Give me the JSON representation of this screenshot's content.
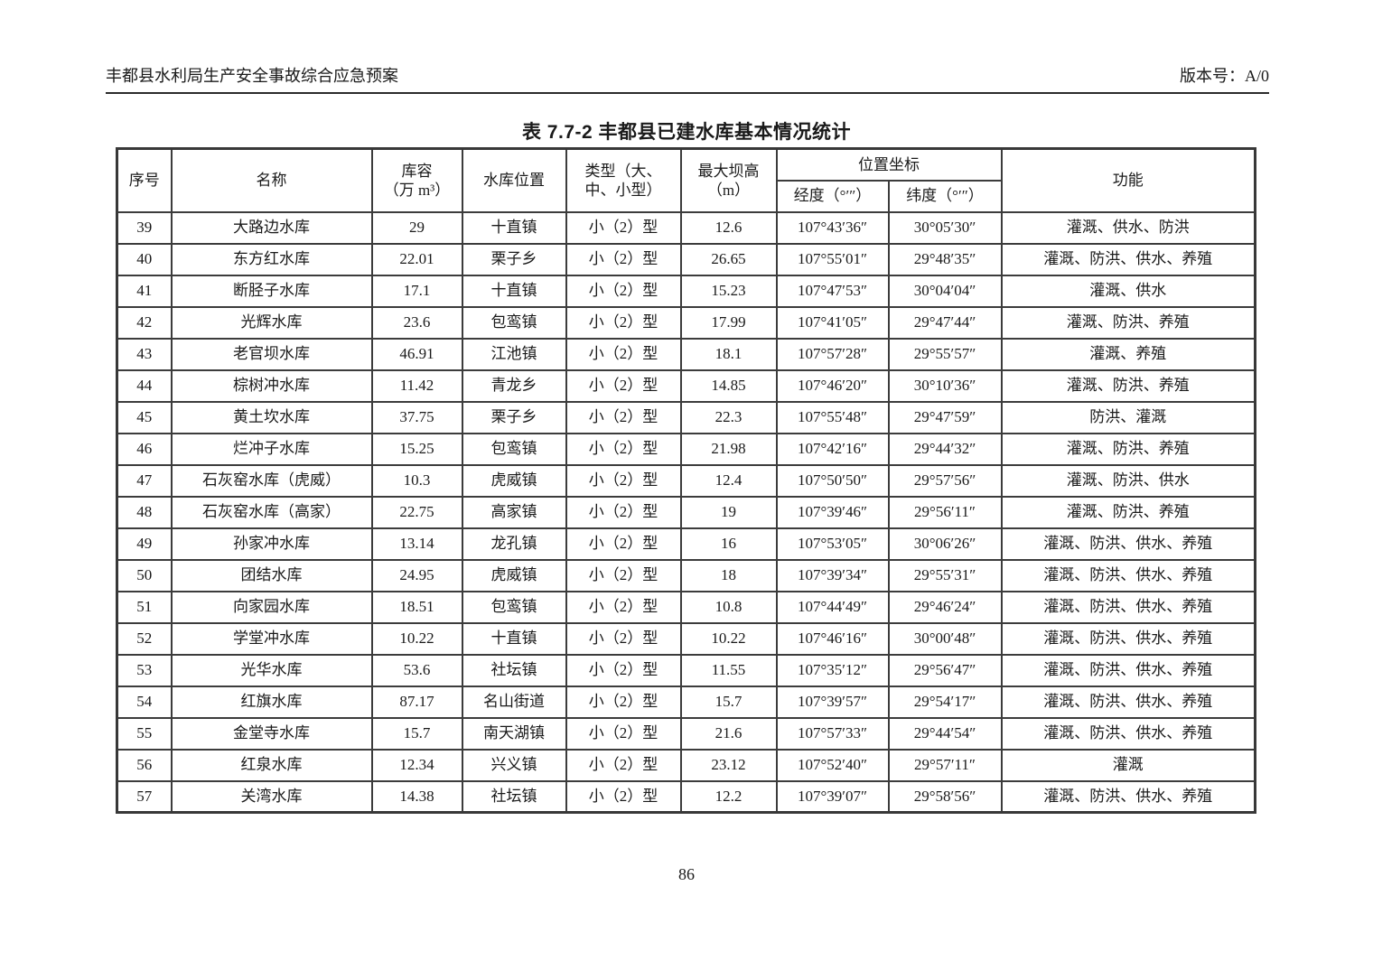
{
  "doc_header": {
    "left": "丰都县水利局生产安全事故综合应急预案",
    "right": "版本号：A/0"
  },
  "title": "表 7.7-2 丰都县已建水库基本情况统计",
  "page_number": "86",
  "colors": {
    "text": "#1a1a1a",
    "border": "#3c3c3c",
    "background": "#ffffff"
  },
  "table": {
    "headers": {
      "index": "序号",
      "name": "名称",
      "capacity": "库容\n（万 m³）",
      "location": "水库位置",
      "type": "类型（大、\n中、小型）",
      "dam_height": "最大坝高\n（m）",
      "coords": "位置坐标",
      "longitude": "经度（°′″）",
      "latitude": "纬度（°′″）",
      "function": "功能"
    },
    "rows": [
      [
        "39",
        "大路边水库",
        "29",
        "十直镇",
        "小（2）型",
        "12.6",
        "107°43′36″",
        "30°05′30″",
        "灌溉、供水、防洪"
      ],
      [
        "40",
        "东方红水库",
        "22.01",
        "栗子乡",
        "小（2）型",
        "26.65",
        "107°55′01″",
        "29°48′35″",
        "灌溉、防洪、供水、养殖"
      ],
      [
        "41",
        "断胫子水库",
        "17.1",
        "十直镇",
        "小（2）型",
        "15.23",
        "107°47′53″",
        "30°04′04″",
        "灌溉、供水"
      ],
      [
        "42",
        "光辉水库",
        "23.6",
        "包鸾镇",
        "小（2）型",
        "17.99",
        "107°41′05″",
        "29°47′44″",
        "灌溉、防洪、养殖"
      ],
      [
        "43",
        "老官坝水库",
        "46.91",
        "江池镇",
        "小（2）型",
        "18.1",
        "107°57′28″",
        "29°55′57″",
        "灌溉、养殖"
      ],
      [
        "44",
        "棕树冲水库",
        "11.42",
        "青龙乡",
        "小（2）型",
        "14.85",
        "107°46′20″",
        "30°10′36″",
        "灌溉、防洪、养殖"
      ],
      [
        "45",
        "黄土坎水库",
        "37.75",
        "栗子乡",
        "小（2）型",
        "22.3",
        "107°55′48″",
        "29°47′59″",
        "防洪、灌溉"
      ],
      [
        "46",
        "烂冲子水库",
        "15.25",
        "包鸾镇",
        "小（2）型",
        "21.98",
        "107°42′16″",
        "29°44′32″",
        "灌溉、防洪、养殖"
      ],
      [
        "47",
        "石灰窑水库（虎威）",
        "10.3",
        "虎威镇",
        "小（2）型",
        "12.4",
        "107°50′50″",
        "29°57′56″",
        "灌溉、防洪、供水"
      ],
      [
        "48",
        "石灰窑水库（高家）",
        "22.75",
        "高家镇",
        "小（2）型",
        "19",
        "107°39′46″",
        "29°56′11″",
        "灌溉、防洪、养殖"
      ],
      [
        "49",
        "孙家冲水库",
        "13.14",
        "龙孔镇",
        "小（2）型",
        "16",
        "107°53′05″",
        "30°06′26″",
        "灌溉、防洪、供水、养殖"
      ],
      [
        "50",
        "团结水库",
        "24.95",
        "虎威镇",
        "小（2）型",
        "18",
        "107°39′34″",
        "29°55′31″",
        "灌溉、防洪、供水、养殖"
      ],
      [
        "51",
        "向家园水库",
        "18.51",
        "包鸾镇",
        "小（2）型",
        "10.8",
        "107°44′49″",
        "29°46′24″",
        "灌溉、防洪、供水、养殖"
      ],
      [
        "52",
        "学堂冲水库",
        "10.22",
        "十直镇",
        "小（2）型",
        "10.22",
        "107°46′16″",
        "30°00′48″",
        "灌溉、防洪、供水、养殖"
      ],
      [
        "53",
        "光华水库",
        "53.6",
        "社坛镇",
        "小（2）型",
        "11.55",
        "107°35′12″",
        "29°56′47″",
        "灌溉、防洪、供水、养殖"
      ],
      [
        "54",
        "红旗水库",
        "87.17",
        "名山街道",
        "小（2）型",
        "15.7",
        "107°39′57″",
        "29°54′17″",
        "灌溉、防洪、供水、养殖"
      ],
      [
        "55",
        "金堂寺水库",
        "15.7",
        "南天湖镇",
        "小（2）型",
        "21.6",
        "107°57′33″",
        "29°44′54″",
        "灌溉、防洪、供水、养殖"
      ],
      [
        "56",
        "红泉水库",
        "12.34",
        "兴义镇",
        "小（2）型",
        "23.12",
        "107°52′40″",
        "29°57′11″",
        "灌溉"
      ],
      [
        "57",
        "关湾水库",
        "14.38",
        "社坛镇",
        "小（2）型",
        "12.2",
        "107°39′07″",
        "29°58′56″",
        "灌溉、防洪、供水、养殖"
      ]
    ]
  }
}
